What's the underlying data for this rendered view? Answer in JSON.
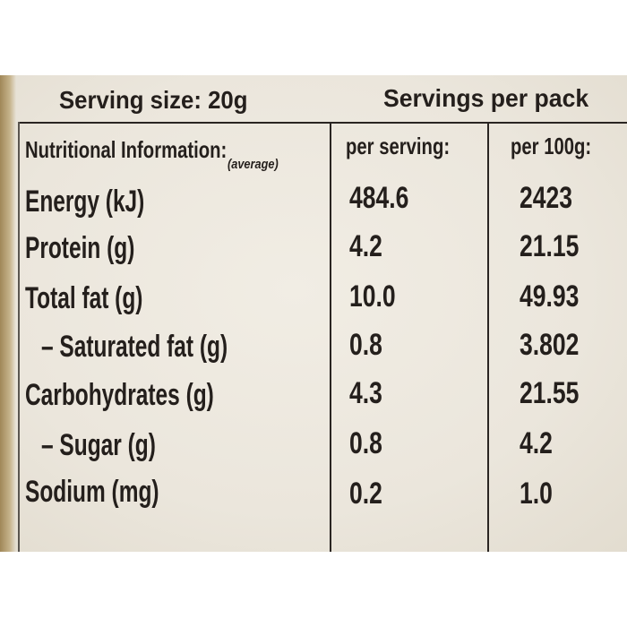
{
  "header": {
    "serving_size": "Serving size: 20g",
    "servings_per_pack": "Servings per pack"
  },
  "columns": {
    "nutritional_info": "Nutritional Information:",
    "average": "(average)",
    "per_serving": "per serving:",
    "per_100g": "per 100g:"
  },
  "rows": [
    {
      "label": "Energy (kJ)",
      "per_serving": "484.6",
      "per_100g": "2423"
    },
    {
      "label": "Protein (g)",
      "per_serving": "4.2",
      "per_100g": "21.15"
    },
    {
      "label": "Total fat (g)",
      "per_serving": "10.0",
      "per_100g": "49.93"
    },
    {
      "label": "– Saturated fat (g)",
      "per_serving": "0.8",
      "per_100g": "3.802"
    },
    {
      "label": "Carbohydrates (g)",
      "per_serving": "4.3",
      "per_100g": "21.55"
    },
    {
      "label": "– Sugar (g)",
      "per_serving": "0.8",
      "per_100g": "4.2"
    },
    {
      "label": "Sodium (mg)",
      "per_serving": "0.2",
      "per_100g": "1.0"
    }
  ]
}
